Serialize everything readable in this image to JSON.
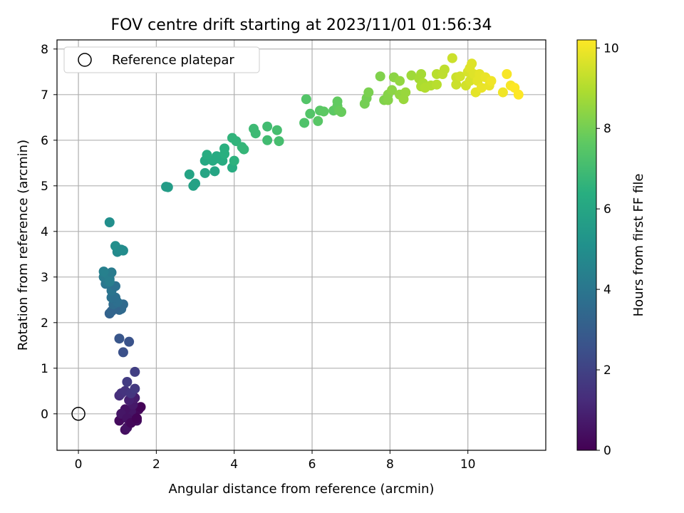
{
  "chart_data": {
    "type": "scatter",
    "title": "FOV centre drift starting at 2023/11/01 01:56:34",
    "xlabel": "Angular distance from reference (arcmin)",
    "ylabel": "Rotation from reference (arcmin)",
    "xlim": [
      -0.55,
      12.0
    ],
    "ylim": [
      -0.8,
      8.2
    ],
    "xticks": [
      0,
      2,
      4,
      6,
      8,
      10
    ],
    "yticks": [
      0,
      1,
      2,
      3,
      4,
      5,
      6,
      7,
      8
    ],
    "grid": true,
    "legend": {
      "placement": "top-left",
      "entries": [
        "Reference platepar"
      ]
    },
    "reference_point": {
      "label": "Reference platepar",
      "x": 0,
      "y": 0,
      "marker": "hollow-circle"
    },
    "colorbar": {
      "label": "Hours from first FF file",
      "min": 0,
      "max": 10.2,
      "ticks": [
        0,
        2,
        4,
        6,
        8,
        10
      ],
      "colormap": "viridis"
    },
    "points": [
      {
        "x": 1.05,
        "y": -0.15,
        "h": 0.3
      },
      {
        "x": 1.2,
        "y": -0.35,
        "h": 0.4
      },
      {
        "x": 1.25,
        "y": -0.3,
        "h": 0.5
      },
      {
        "x": 1.15,
        "y": -0.05,
        "h": 0.2
      },
      {
        "x": 1.3,
        "y": 0.0,
        "h": 0.3
      },
      {
        "x": 1.5,
        "y": -0.15,
        "h": 0.4
      },
      {
        "x": 1.45,
        "y": -0.05,
        "h": 0.3
      },
      {
        "x": 1.55,
        "y": 0.1,
        "h": 0.2
      },
      {
        "x": 1.6,
        "y": 0.15,
        "h": 0.1
      },
      {
        "x": 1.35,
        "y": 0.05,
        "h": 0.6
      },
      {
        "x": 1.2,
        "y": 0.1,
        "h": 0.5
      },
      {
        "x": 1.4,
        "y": 0.2,
        "h": 0.7
      },
      {
        "x": 1.45,
        "y": 0.35,
        "h": 0.8
      },
      {
        "x": 1.3,
        "y": 0.3,
        "h": 0.9
      },
      {
        "x": 1.1,
        "y": 0.0,
        "h": 0.6
      },
      {
        "x": 1.25,
        "y": -0.1,
        "h": 0.5
      },
      {
        "x": 1.35,
        "y": -0.2,
        "h": 0.2
      },
      {
        "x": 1.5,
        "y": -0.1,
        "h": 0.1
      },
      {
        "x": 1.05,
        "y": 0.4,
        "h": 1.3
      },
      {
        "x": 1.1,
        "y": 0.45,
        "h": 1.4
      },
      {
        "x": 1.2,
        "y": 0.5,
        "h": 1.5
      },
      {
        "x": 1.35,
        "y": 0.45,
        "h": 1.6
      },
      {
        "x": 1.45,
        "y": 0.55,
        "h": 1.7
      },
      {
        "x": 1.25,
        "y": 0.7,
        "h": 1.8
      },
      {
        "x": 1.45,
        "y": 0.92,
        "h": 1.9
      },
      {
        "x": 1.15,
        "y": 1.35,
        "h": 2.5
      },
      {
        "x": 1.3,
        "y": 1.58,
        "h": 2.6
      },
      {
        "x": 1.05,
        "y": 1.65,
        "h": 2.7
      },
      {
        "x": 0.8,
        "y": 2.2,
        "h": 3.2
      },
      {
        "x": 0.85,
        "y": 2.25,
        "h": 3.3
      },
      {
        "x": 1.05,
        "y": 2.28,
        "h": 3.4
      },
      {
        "x": 1.1,
        "y": 2.3,
        "h": 3.5
      },
      {
        "x": 0.95,
        "y": 2.3,
        "h": 3.3
      },
      {
        "x": 0.9,
        "y": 2.4,
        "h": 3.6
      },
      {
        "x": 1.15,
        "y": 2.4,
        "h": 3.5
      },
      {
        "x": 1.0,
        "y": 2.45,
        "h": 3.7
      },
      {
        "x": 0.85,
        "y": 2.55,
        "h": 3.8
      },
      {
        "x": 0.95,
        "y": 2.55,
        "h": 3.7
      },
      {
        "x": 0.85,
        "y": 2.7,
        "h": 3.9
      },
      {
        "x": 0.95,
        "y": 2.8,
        "h": 3.8
      },
      {
        "x": 0.7,
        "y": 2.85,
        "h": 4.0
      },
      {
        "x": 0.75,
        "y": 2.9,
        "h": 4.1
      },
      {
        "x": 0.8,
        "y": 2.95,
        "h": 4.0
      },
      {
        "x": 0.65,
        "y": 3.0,
        "h": 4.2
      },
      {
        "x": 0.75,
        "y": 3.05,
        "h": 4.3
      },
      {
        "x": 0.85,
        "y": 3.1,
        "h": 4.2
      },
      {
        "x": 0.65,
        "y": 3.12,
        "h": 4.4
      },
      {
        "x": 0.8,
        "y": 2.9,
        "h": 4.3
      },
      {
        "x": 1.0,
        "y": 3.55,
        "h": 4.8
      },
      {
        "x": 1.15,
        "y": 3.58,
        "h": 4.9
      },
      {
        "x": 0.95,
        "y": 3.68,
        "h": 5.0
      },
      {
        "x": 1.1,
        "y": 3.6,
        "h": 4.9
      },
      {
        "x": 0.8,
        "y": 4.2,
        "h": 5.0
      },
      {
        "x": 2.25,
        "y": 4.98,
        "h": 5.6
      },
      {
        "x": 2.3,
        "y": 4.97,
        "h": 5.6
      },
      {
        "x": 2.95,
        "y": 5.0,
        "h": 5.8
      },
      {
        "x": 3.0,
        "y": 5.05,
        "h": 5.8
      },
      {
        "x": 2.85,
        "y": 5.25,
        "h": 5.9
      },
      {
        "x": 3.25,
        "y": 5.28,
        "h": 6.0
      },
      {
        "x": 3.5,
        "y": 5.32,
        "h": 6.0
      },
      {
        "x": 3.25,
        "y": 5.55,
        "h": 6.1
      },
      {
        "x": 3.45,
        "y": 5.55,
        "h": 6.2
      },
      {
        "x": 3.6,
        "y": 5.6,
        "h": 6.2
      },
      {
        "x": 3.7,
        "y": 5.55,
        "h": 6.3
      },
      {
        "x": 3.3,
        "y": 5.68,
        "h": 6.3
      },
      {
        "x": 3.55,
        "y": 5.65,
        "h": 6.2
      },
      {
        "x": 3.75,
        "y": 5.7,
        "h": 6.4
      },
      {
        "x": 3.75,
        "y": 5.82,
        "h": 6.4
      },
      {
        "x": 3.95,
        "y": 5.4,
        "h": 6.3
      },
      {
        "x": 4.0,
        "y": 5.55,
        "h": 6.5
      },
      {
        "x": 3.95,
        "y": 6.05,
        "h": 6.6
      },
      {
        "x": 4.05,
        "y": 5.98,
        "h": 6.6
      },
      {
        "x": 4.2,
        "y": 5.85,
        "h": 6.7
      },
      {
        "x": 4.25,
        "y": 5.8,
        "h": 6.7
      },
      {
        "x": 4.5,
        "y": 6.25,
        "h": 6.9
      },
      {
        "x": 4.55,
        "y": 6.15,
        "h": 6.9
      },
      {
        "x": 4.85,
        "y": 6.3,
        "h": 7.0
      },
      {
        "x": 4.85,
        "y": 6.0,
        "h": 7.0
      },
      {
        "x": 5.1,
        "y": 6.22,
        "h": 7.1
      },
      {
        "x": 5.15,
        "y": 5.98,
        "h": 7.1
      },
      {
        "x": 5.8,
        "y": 6.38,
        "h": 7.3
      },
      {
        "x": 5.85,
        "y": 6.9,
        "h": 7.4
      },
      {
        "x": 5.95,
        "y": 6.58,
        "h": 7.4
      },
      {
        "x": 6.15,
        "y": 6.42,
        "h": 7.5
      },
      {
        "x": 6.2,
        "y": 6.65,
        "h": 7.5
      },
      {
        "x": 6.3,
        "y": 6.63,
        "h": 7.6
      },
      {
        "x": 6.55,
        "y": 6.65,
        "h": 7.6
      },
      {
        "x": 6.65,
        "y": 6.75,
        "h": 7.7
      },
      {
        "x": 6.65,
        "y": 6.85,
        "h": 7.7
      },
      {
        "x": 6.7,
        "y": 6.65,
        "h": 7.8
      },
      {
        "x": 6.75,
        "y": 6.62,
        "h": 7.8
      },
      {
        "x": 7.35,
        "y": 6.8,
        "h": 8.0
      },
      {
        "x": 7.4,
        "y": 6.92,
        "h": 8.0
      },
      {
        "x": 7.45,
        "y": 7.05,
        "h": 8.1
      },
      {
        "x": 7.75,
        "y": 7.4,
        "h": 8.2
      },
      {
        "x": 7.85,
        "y": 6.88,
        "h": 8.2
      },
      {
        "x": 7.95,
        "y": 6.88,
        "h": 8.3
      },
      {
        "x": 7.95,
        "y": 7.0,
        "h": 8.3
      },
      {
        "x": 8.05,
        "y": 7.1,
        "h": 8.4
      },
      {
        "x": 8.1,
        "y": 7.38,
        "h": 8.4
      },
      {
        "x": 8.25,
        "y": 7.3,
        "h": 8.5
      },
      {
        "x": 8.25,
        "y": 7.0,
        "h": 8.5
      },
      {
        "x": 8.35,
        "y": 6.9,
        "h": 8.6
      },
      {
        "x": 8.4,
        "y": 7.05,
        "h": 8.6
      },
      {
        "x": 8.55,
        "y": 7.42,
        "h": 8.7
      },
      {
        "x": 8.75,
        "y": 7.35,
        "h": 8.8
      },
      {
        "x": 8.8,
        "y": 7.45,
        "h": 8.8
      },
      {
        "x": 8.8,
        "y": 7.18,
        "h": 8.9
      },
      {
        "x": 8.85,
        "y": 7.25,
        "h": 8.9
      },
      {
        "x": 8.9,
        "y": 7.15,
        "h": 9.0
      },
      {
        "x": 9.05,
        "y": 7.2,
        "h": 9.0
      },
      {
        "x": 9.2,
        "y": 7.22,
        "h": 9.1
      },
      {
        "x": 9.2,
        "y": 7.45,
        "h": 9.1
      },
      {
        "x": 9.35,
        "y": 7.45,
        "h": 9.2
      },
      {
        "x": 9.4,
        "y": 7.55,
        "h": 9.2
      },
      {
        "x": 9.6,
        "y": 7.8,
        "h": 9.4
      },
      {
        "x": 9.7,
        "y": 7.22,
        "h": 9.4
      },
      {
        "x": 9.7,
        "y": 7.38,
        "h": 9.4
      },
      {
        "x": 9.8,
        "y": 7.4,
        "h": 9.5
      },
      {
        "x": 9.95,
        "y": 7.2,
        "h": 9.5
      },
      {
        "x": 10.0,
        "y": 7.5,
        "h": 9.6
      },
      {
        "x": 10.05,
        "y": 7.3,
        "h": 9.6
      },
      {
        "x": 10.05,
        "y": 7.58,
        "h": 9.7
      },
      {
        "x": 10.1,
        "y": 7.68,
        "h": 9.7
      },
      {
        "x": 10.15,
        "y": 7.45,
        "h": 9.7
      },
      {
        "x": 10.2,
        "y": 7.05,
        "h": 9.8
      },
      {
        "x": 10.25,
        "y": 7.3,
        "h": 9.8
      },
      {
        "x": 10.3,
        "y": 7.45,
        "h": 9.8
      },
      {
        "x": 10.35,
        "y": 7.15,
        "h": 9.9
      },
      {
        "x": 10.45,
        "y": 7.38,
        "h": 9.9
      },
      {
        "x": 10.55,
        "y": 7.2,
        "h": 9.9
      },
      {
        "x": 10.6,
        "y": 7.3,
        "h": 10.0
      },
      {
        "x": 10.9,
        "y": 7.05,
        "h": 10.0
      },
      {
        "x": 11.0,
        "y": 7.45,
        "h": 10.1
      },
      {
        "x": 11.1,
        "y": 7.2,
        "h": 10.1
      },
      {
        "x": 11.2,
        "y": 7.15,
        "h": 10.2
      },
      {
        "x": 11.3,
        "y": 7.0,
        "h": 10.2
      }
    ]
  }
}
